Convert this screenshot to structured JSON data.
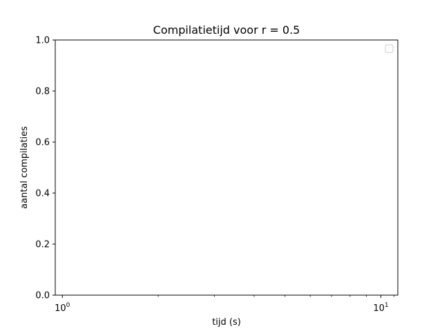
{
  "chart_data": {
    "type": "line",
    "title": "Compilatietijd voor r = 0.5",
    "xlabel": "tijd (s)",
    "ylabel": "aantal compilaties",
    "xscale": "log",
    "xlim": [
      0.95,
      11.3
    ],
    "ylim": [
      0,
      1
    ],
    "xticks": [
      {
        "value": 1,
        "base": "10",
        "exp": "0"
      },
      {
        "value": 10,
        "base": "10",
        "exp": "1"
      }
    ],
    "yticks": [
      {
        "value": 0.0,
        "label": "0.0"
      },
      {
        "value": 0.2,
        "label": "0.2"
      },
      {
        "value": 0.4,
        "label": "0.4"
      },
      {
        "value": 0.6,
        "label": "0.6"
      },
      {
        "value": 0.8,
        "label": "0.8"
      },
      {
        "value": 1.0,
        "label": "1.0"
      }
    ],
    "series": [],
    "grid": false,
    "legend": {
      "placement": "top-right",
      "entries": []
    }
  }
}
